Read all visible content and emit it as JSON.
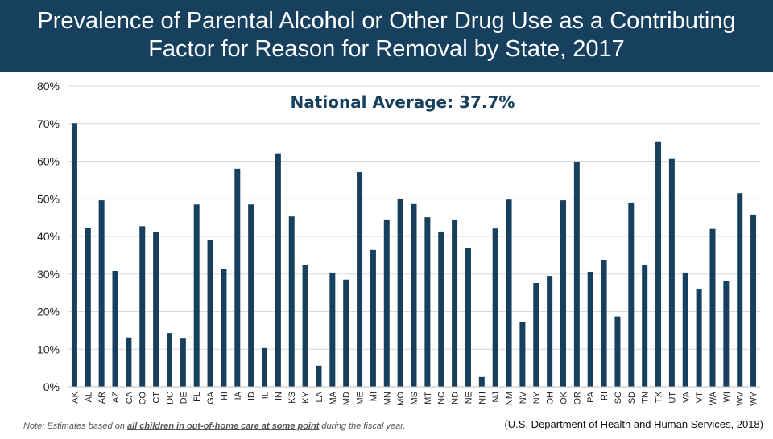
{
  "title": {
    "line1": "Prevalence of Parental Alcohol or Other Drug Use as a Contributing",
    "line2": "Factor for Reason for Removal by State, 2017"
  },
  "annotation": "National Average: 37.7%",
  "note": {
    "prefix": "Note: Estimates based on ",
    "emphasis": "all children in out-of-home care at some point",
    "suffix": " during the fiscal year."
  },
  "source": "(U.S. Department of Health and Human Services, 2018)",
  "colors": {
    "bar": "#17405f",
    "title_bg": "#17405f",
    "grid": "#d9d9d9"
  },
  "chart_data": {
    "type": "bar",
    "categories": [
      "AK",
      "AL",
      "AR",
      "AZ",
      "CA",
      "CO",
      "CT",
      "DC",
      "DE",
      "FL",
      "GA",
      "HI",
      "IA",
      "ID",
      "IL",
      "IN",
      "KS",
      "KY",
      "LA",
      "MA",
      "MD",
      "ME",
      "MI",
      "MN",
      "MO",
      "MS",
      "MT",
      "NC",
      "ND",
      "NE",
      "NH",
      "NJ",
      "NM",
      "NV",
      "NY",
      "OH",
      "OK",
      "OR",
      "PA",
      "RI",
      "SC",
      "SD",
      "TN",
      "TX",
      "UT",
      "VA",
      "VT",
      "WA",
      "WI",
      "WV",
      "WY"
    ],
    "values": [
      70.1,
      42.2,
      49.6,
      30.8,
      13.1,
      42.7,
      41.1,
      14.3,
      12.8,
      48.5,
      39.1,
      31.4,
      58.0,
      48.5,
      10.3,
      62.1,
      45.3,
      32.3,
      5.6,
      30.4,
      28.5,
      57.1,
      36.4,
      44.3,
      49.9,
      48.6,
      45.1,
      41.3,
      44.3,
      37.0,
      2.6,
      42.1,
      49.8,
      17.3,
      27.6,
      29.5,
      49.6,
      59.7,
      30.6,
      33.8,
      18.7,
      49.0,
      32.5,
      65.3,
      60.6,
      30.4,
      25.9,
      42.0,
      28.2,
      51.5,
      45.8
    ],
    "yticks": [
      "0%",
      "10%",
      "20%",
      "30%",
      "40%",
      "50%",
      "60%",
      "70%",
      "80%"
    ],
    "ylim": [
      0,
      80
    ],
    "grid": true
  }
}
